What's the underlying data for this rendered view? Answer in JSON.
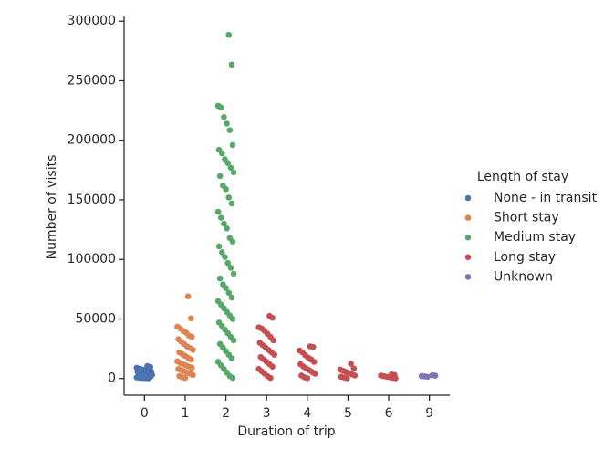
{
  "chart_data": {
    "type": "strip",
    "xlabel": "Duration of trip",
    "ylabel": "Number of visits",
    "legend_title": "Length of stay",
    "legend": "right",
    "categories": [
      "0",
      "1",
      "2",
      "3",
      "4",
      "5",
      "6",
      "9"
    ],
    "ylim": [
      -14000,
      304000
    ],
    "yticks": [
      0,
      50000,
      100000,
      150000,
      200000,
      250000,
      300000
    ],
    "series": [
      {
        "name": "None - in transit",
        "color": "#4c72b0",
        "category": "0",
        "values": [
          10500,
          9800,
          9000,
          8200,
          7600,
          7000,
          6500,
          6000,
          5500,
          5000,
          4500,
          4000,
          3500,
          3000,
          2600,
          2200,
          1800,
          1500,
          1200,
          900,
          600,
          400,
          200,
          100
        ]
      },
      {
        "name": "Short stay",
        "color": "#dd8452",
        "category": "1",
        "values": [
          69000,
          50500,
          43500,
          42000,
          40000,
          38500,
          36000,
          35000,
          33000,
          31000,
          29000,
          27000,
          25500,
          24000,
          22000,
          20500,
          19000,
          17500,
          16000,
          14500,
          13000,
          12000,
          11000,
          10000,
          9000,
          8000,
          7000,
          6000,
          5000,
          4000,
          3000,
          2000,
          1000,
          500
        ]
      },
      {
        "name": "Medium stay",
        "color": "#55a868",
        "category": "2",
        "values": [
          288500,
          263500,
          229000,
          227500,
          219500,
          214000,
          208500,
          196000,
          192000,
          189000,
          184000,
          181000,
          177000,
          173000,
          170000,
          162000,
          159000,
          152000,
          147000,
          140000,
          135000,
          130000,
          126000,
          118000,
          115000,
          111000,
          106000,
          102000,
          97000,
          93000,
          88000,
          84000,
          79000,
          76000,
          72000,
          68000,
          65000,
          62000,
          59000,
          56000,
          53000,
          50000,
          47000,
          44000,
          41000,
          38000,
          35000,
          32000,
          29000,
          26000,
          23000,
          20000,
          17000,
          14000,
          11000,
          8000,
          5000,
          2000,
          500
        ]
      },
      {
        "name": "Long stay",
        "color": "#c44e52",
        "category": "3",
        "values": [
          52500,
          51000,
          43000,
          42000,
          40000,
          37500,
          35000,
          32000,
          30000,
          28000,
          26000,
          24000,
          22000,
          20000,
          18000,
          16000,
          14000,
          12000,
          10000,
          8000,
          6000,
          4000,
          2000,
          500
        ]
      },
      {
        "name": "Unknown",
        "color": "#8172b3",
        "category": "9",
        "values": [
          2700,
          2400,
          2100,
          1800,
          1500
        ]
      }
    ],
    "extra_points": [
      {
        "color": "#c44e52",
        "category": "4",
        "values": [
          27000,
          26500,
          23500,
          22000,
          19500,
          17500,
          16000,
          14000,
          12000,
          10000,
          8500,
          7000,
          5500,
          4000,
          2500,
          1000,
          300
        ]
      },
      {
        "color": "#c44e52",
        "category": "5",
        "values": [
          12500,
          8500,
          7500,
          6500,
          5500,
          4500,
          3500,
          2500,
          1500,
          800,
          200
        ]
      },
      {
        "color": "#c44e52",
        "category": "6",
        "values": [
          3500,
          3000,
          2500,
          2000,
          1500,
          1000,
          500,
          200
        ]
      }
    ]
  }
}
